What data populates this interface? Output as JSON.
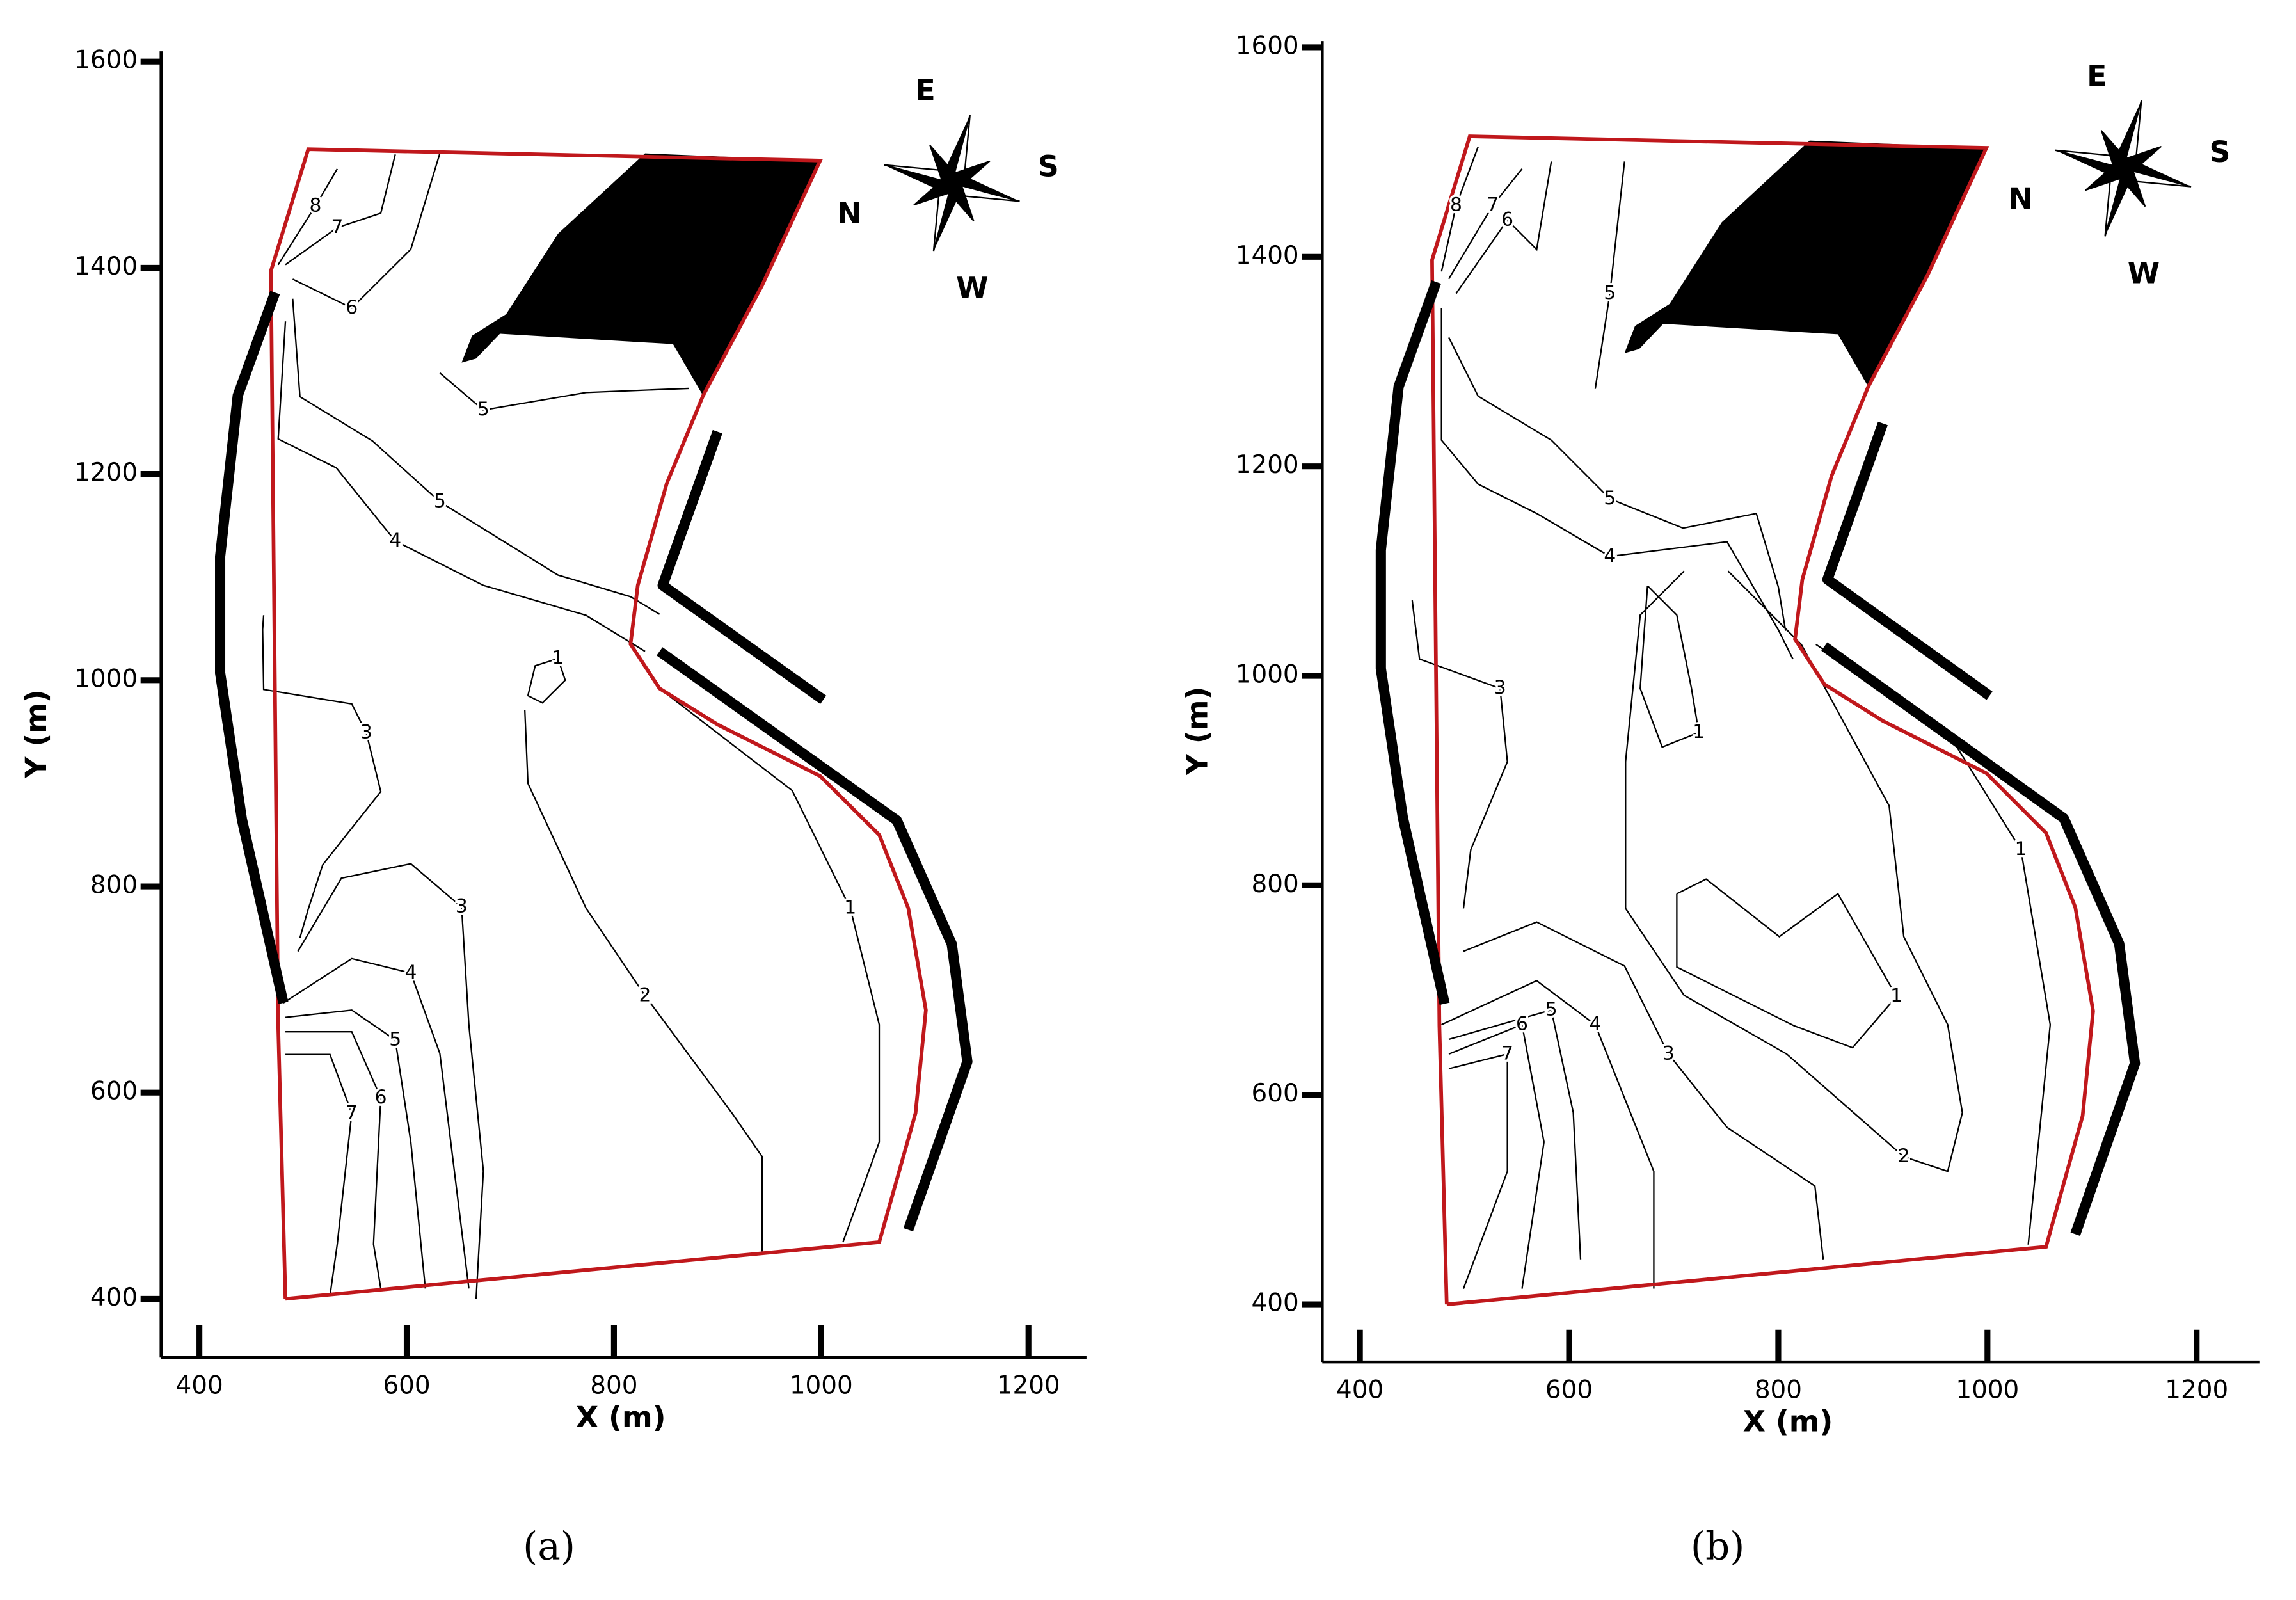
{
  "chart_data": [
    {
      "type": "contour",
      "x_label": "X (m)",
      "y_label": "Y (m)",
      "panel_label": "(a)",
      "xlim": [
        363,
        1256
      ],
      "ylim": [
        343,
        1610
      ],
      "xticks": [
        400,
        600,
        800,
        1000,
        1200
      ],
      "yticks": [
        400,
        600,
        800,
        1000,
        1200,
        1400,
        1600
      ],
      "compass": {
        "east": "E",
        "south": "S",
        "north": "N",
        "west": "W"
      },
      "boundary": {
        "color": "#c0181c",
        "x": [
          483,
          476,
          469,
          505,
          999,
          943,
          886,
          851,
          823,
          816,
          844,
          900,
          999,
          1056,
          1084,
          1101,
          1091,
          1056,
          483
        ],
        "y": [
          400,
          666,
          1397,
          1515,
          1504,
          1383,
          1276,
          1191,
          1092,
          1035,
          992,
          957,
          907,
          850,
          779,
          680,
          580,
          455,
          400
        ]
      },
      "land": {
        "color": "#000000",
        "x": [
          653,
          663,
          696,
          746,
          830,
          999,
          943,
          886,
          857,
          690,
          667
        ],
        "y": [
          1308,
          1334,
          1355,
          1433,
          1511,
          1504,
          1383,
          1276,
          1326,
          1336,
          1312
        ]
      },
      "breakwaters": [
        {
          "color": "#000000",
          "x": [
            473,
            437,
            420,
            420,
            441,
            481
          ],
          "y": [
            1376,
            1276,
            1120,
            1007,
            865,
            687
          ]
        },
        {
          "color": "#000000",
          "x": [
            900,
            847,
            1002
          ],
          "y": [
            1241,
            1092,
            981
          ]
        },
        {
          "color": "#000000",
          "x": [
            844,
            1073,
            1126,
            1141,
            1084
          ],
          "y": [
            1028,
            864,
            744,
            630,
            467
          ]
        }
      ],
      "contours": [
        {
          "level": 8,
          "x": [
            533,
            512,
            476
          ],
          "y": [
            1496,
            1460,
            1403
          ]
        },
        {
          "level": 7,
          "x": [
            483,
            533,
            575,
            589
          ],
          "y": [
            1403,
            1439,
            1453,
            1510
          ]
        },
        {
          "level": 6,
          "x": [
            490,
            547,
            604,
            632
          ],
          "y": [
            1389,
            1361,
            1418,
            1511
          ]
        },
        {
          "level": 5,
          "x": [
            490,
            497,
            567,
            632,
            746,
            816,
            844
          ],
          "y": [
            1370,
            1275,
            1232,
            1173,
            1102,
            1081,
            1064
          ]
        },
        {
          "level": 5,
          "x": [
            632,
            674,
            773,
            872
          ],
          "y": [
            1298,
            1262,
            1279,
            1283
          ]
        },
        {
          "level": 4,
          "x": [
            483,
            476,
            532,
            589,
            674,
            773,
            830
          ],
          "y": [
            1348,
            1234,
            1206,
            1135,
            1092,
            1063,
            1028
          ]
        },
        {
          "level": 3,
          "x": [
            462,
            461,
            462,
            547,
            561,
            575,
            519,
            505,
            497
          ],
          "y": [
            1063,
            1049,
            991,
            977,
            949,
            892,
            821,
            778,
            750
          ]
        },
        {
          "level": 3,
          "x": [
            495,
            537,
            604,
            653,
            660,
            674,
            667
          ],
          "y": [
            737,
            808,
            822,
            780,
            666,
            524,
            400
          ]
        },
        {
          "level": 2,
          "x": [
            714,
            717,
            773,
            830,
            914,
            943,
            943
          ],
          "y": [
            971,
            900,
            779,
            694,
            580,
            538,
            446
          ]
        },
        {
          "level": 1,
          "x": [
            717,
            724,
            746,
            753,
            731,
            717
          ],
          "y": [
            985,
            1014,
            1021,
            1000,
            978,
            985
          ]
        },
        {
          "level": 1,
          "x": [
            844,
            972,
            1028,
            1056,
            1056,
            1021
          ],
          "y": [
            992,
            893,
            779,
            666,
            552,
            455
          ]
        },
        {
          "level": 4,
          "x": [
            481,
            547,
            604,
            632,
            646,
            660
          ],
          "y": [
            687,
            730,
            716,
            638,
            524,
            410
          ]
        },
        {
          "level": 5,
          "x": [
            483,
            547,
            589,
            604,
            618
          ],
          "y": [
            673,
            680,
            651,
            552,
            410
          ]
        },
        {
          "level": 6,
          "x": [
            483,
            547,
            575,
            568,
            575
          ],
          "y": [
            659,
            659,
            595,
            453,
            410
          ]
        },
        {
          "level": 7,
          "x": [
            483,
            526,
            547,
            533,
            526
          ],
          "y": [
            637,
            637,
            580,
            453,
            403
          ]
        }
      ]
    },
    {
      "type": "contour",
      "x_label": "X (m)",
      "y_label": "Y (m)",
      "panel_label": "(b)",
      "xlim": [
        364,
        1260
      ],
      "ylim": [
        345,
        1606
      ],
      "xticks": [
        400,
        600,
        800,
        1000,
        1200
      ],
      "yticks": [
        400,
        600,
        800,
        1000,
        1200,
        1400,
        1600
      ],
      "compass": {
        "east": "E",
        "south": "S",
        "north": "N",
        "west": "W"
      },
      "boundary": {
        "color": "#c0181c",
        "x": [
          483,
          476,
          469,
          505,
          999,
          943,
          886,
          851,
          823,
          816,
          844,
          900,
          999,
          1056,
          1084,
          1101,
          1091,
          1056,
          483
        ],
        "y": [
          400,
          666,
          1397,
          1515,
          1504,
          1383,
          1276,
          1191,
          1092,
          1035,
          992,
          957,
          907,
          850,
          779,
          680,
          580,
          455,
          400
        ]
      },
      "land": {
        "color": "#000000",
        "x": [
          653,
          663,
          696,
          746,
          830,
          999,
          943,
          886,
          857,
          690,
          667
        ],
        "y": [
          1308,
          1334,
          1355,
          1433,
          1511,
          1504,
          1383,
          1276,
          1326,
          1336,
          1312
        ]
      },
      "breakwaters": [
        {
          "color": "#000000",
          "x": [
            473,
            437,
            420,
            420,
            441,
            481
          ],
          "y": [
            1376,
            1276,
            1120,
            1007,
            865,
            687
          ]
        },
        {
          "color": "#000000",
          "x": [
            900,
            847,
            1002
          ],
          "y": [
            1241,
            1092,
            981
          ]
        },
        {
          "color": "#000000",
          "x": [
            844,
            1073,
            1126,
            1141,
            1084
          ],
          "y": [
            1028,
            864,
            744,
            630,
            467
          ]
        }
      ],
      "contours": [
        {
          "level": 8,
          "x": [
            513,
            492,
            478
          ],
          "y": [
            1505,
            1449,
            1386
          ]
        },
        {
          "level": 7,
          "x": [
            485,
            527,
            555
          ],
          "y": [
            1379,
            1449,
            1484
          ]
        },
        {
          "level": 6,
          "x": [
            492,
            541,
            569,
            583
          ],
          "y": [
            1365,
            1435,
            1407,
            1491
          ]
        },
        {
          "level": 5,
          "x": [
            485,
            513,
            583,
            639,
            709,
            779,
            800,
            807
          ],
          "y": [
            1323,
            1267,
            1225,
            1169,
            1141,
            1155,
            1085,
            1043
          ]
        },
        {
          "level": 5,
          "x": [
            625,
            639,
            653
          ],
          "y": [
            1274,
            1365,
            1491
          ]
        },
        {
          "level": 4,
          "x": [
            478,
            478,
            513,
            569,
            639,
            695,
            751,
            800,
            814
          ],
          "y": [
            1351,
            1225,
            1183,
            1155,
            1114,
            1121,
            1128,
            1044,
            1016
          ]
        },
        {
          "level": 3,
          "x": [
            450,
            457,
            534,
            541,
            506,
            499
          ],
          "y": [
            1072,
            1016,
            988,
            918,
            834,
            778
          ]
        },
        {
          "level": 3,
          "x": [
            499,
            569,
            653,
            695,
            751,
            835,
            843
          ],
          "y": [
            737,
            765,
            723,
            639,
            569,
            513,
            443
          ]
        },
        {
          "level": 2,
          "x": [
            710,
            668,
            654,
            654,
            710,
            808,
            920,
            962,
            976,
            962,
            920,
            906,
            822,
            752
          ],
          "y": [
            1100,
            1058,
            918,
            778,
            695,
            639,
            541,
            527,
            583,
            667,
            751,
            876,
            1030,
            1100
          ]
        },
        {
          "level": 1,
          "x": [
            675,
            703,
            717,
            724,
            689,
            668,
            675
          ],
          "y": [
            1086,
            1058,
            988,
            946,
            932,
            988,
            1086
          ]
        },
        {
          "level": 1,
          "x": [
            703,
            731,
            801,
            857,
            913,
            871,
            815,
            703,
            703
          ],
          "y": [
            792,
            806,
            751,
            792,
            694,
            645,
            666,
            722,
            792
          ]
        },
        {
          "level": 1,
          "x": [
            836,
            962,
            1032,
            1060,
            1046,
            1039
          ],
          "y": [
            1030,
            946,
            834,
            667,
            527,
            457
          ]
        },
        {
          "level": 4,
          "x": [
            478,
            569,
            625,
            653,
            681,
            681
          ],
          "y": [
            667,
            709,
            667,
            597,
            527,
            415
          ]
        },
        {
          "level": 5,
          "x": [
            485,
            583,
            604,
            611
          ],
          "y": [
            653,
            681,
            583,
            443
          ]
        },
        {
          "level": 6,
          "x": [
            485,
            555,
            576,
            555
          ],
          "y": [
            639,
            667,
            555,
            415
          ]
        },
        {
          "level": 7,
          "x": [
            485,
            541,
            541,
            499
          ],
          "y": [
            625,
            639,
            527,
            415
          ]
        }
      ]
    }
  ]
}
